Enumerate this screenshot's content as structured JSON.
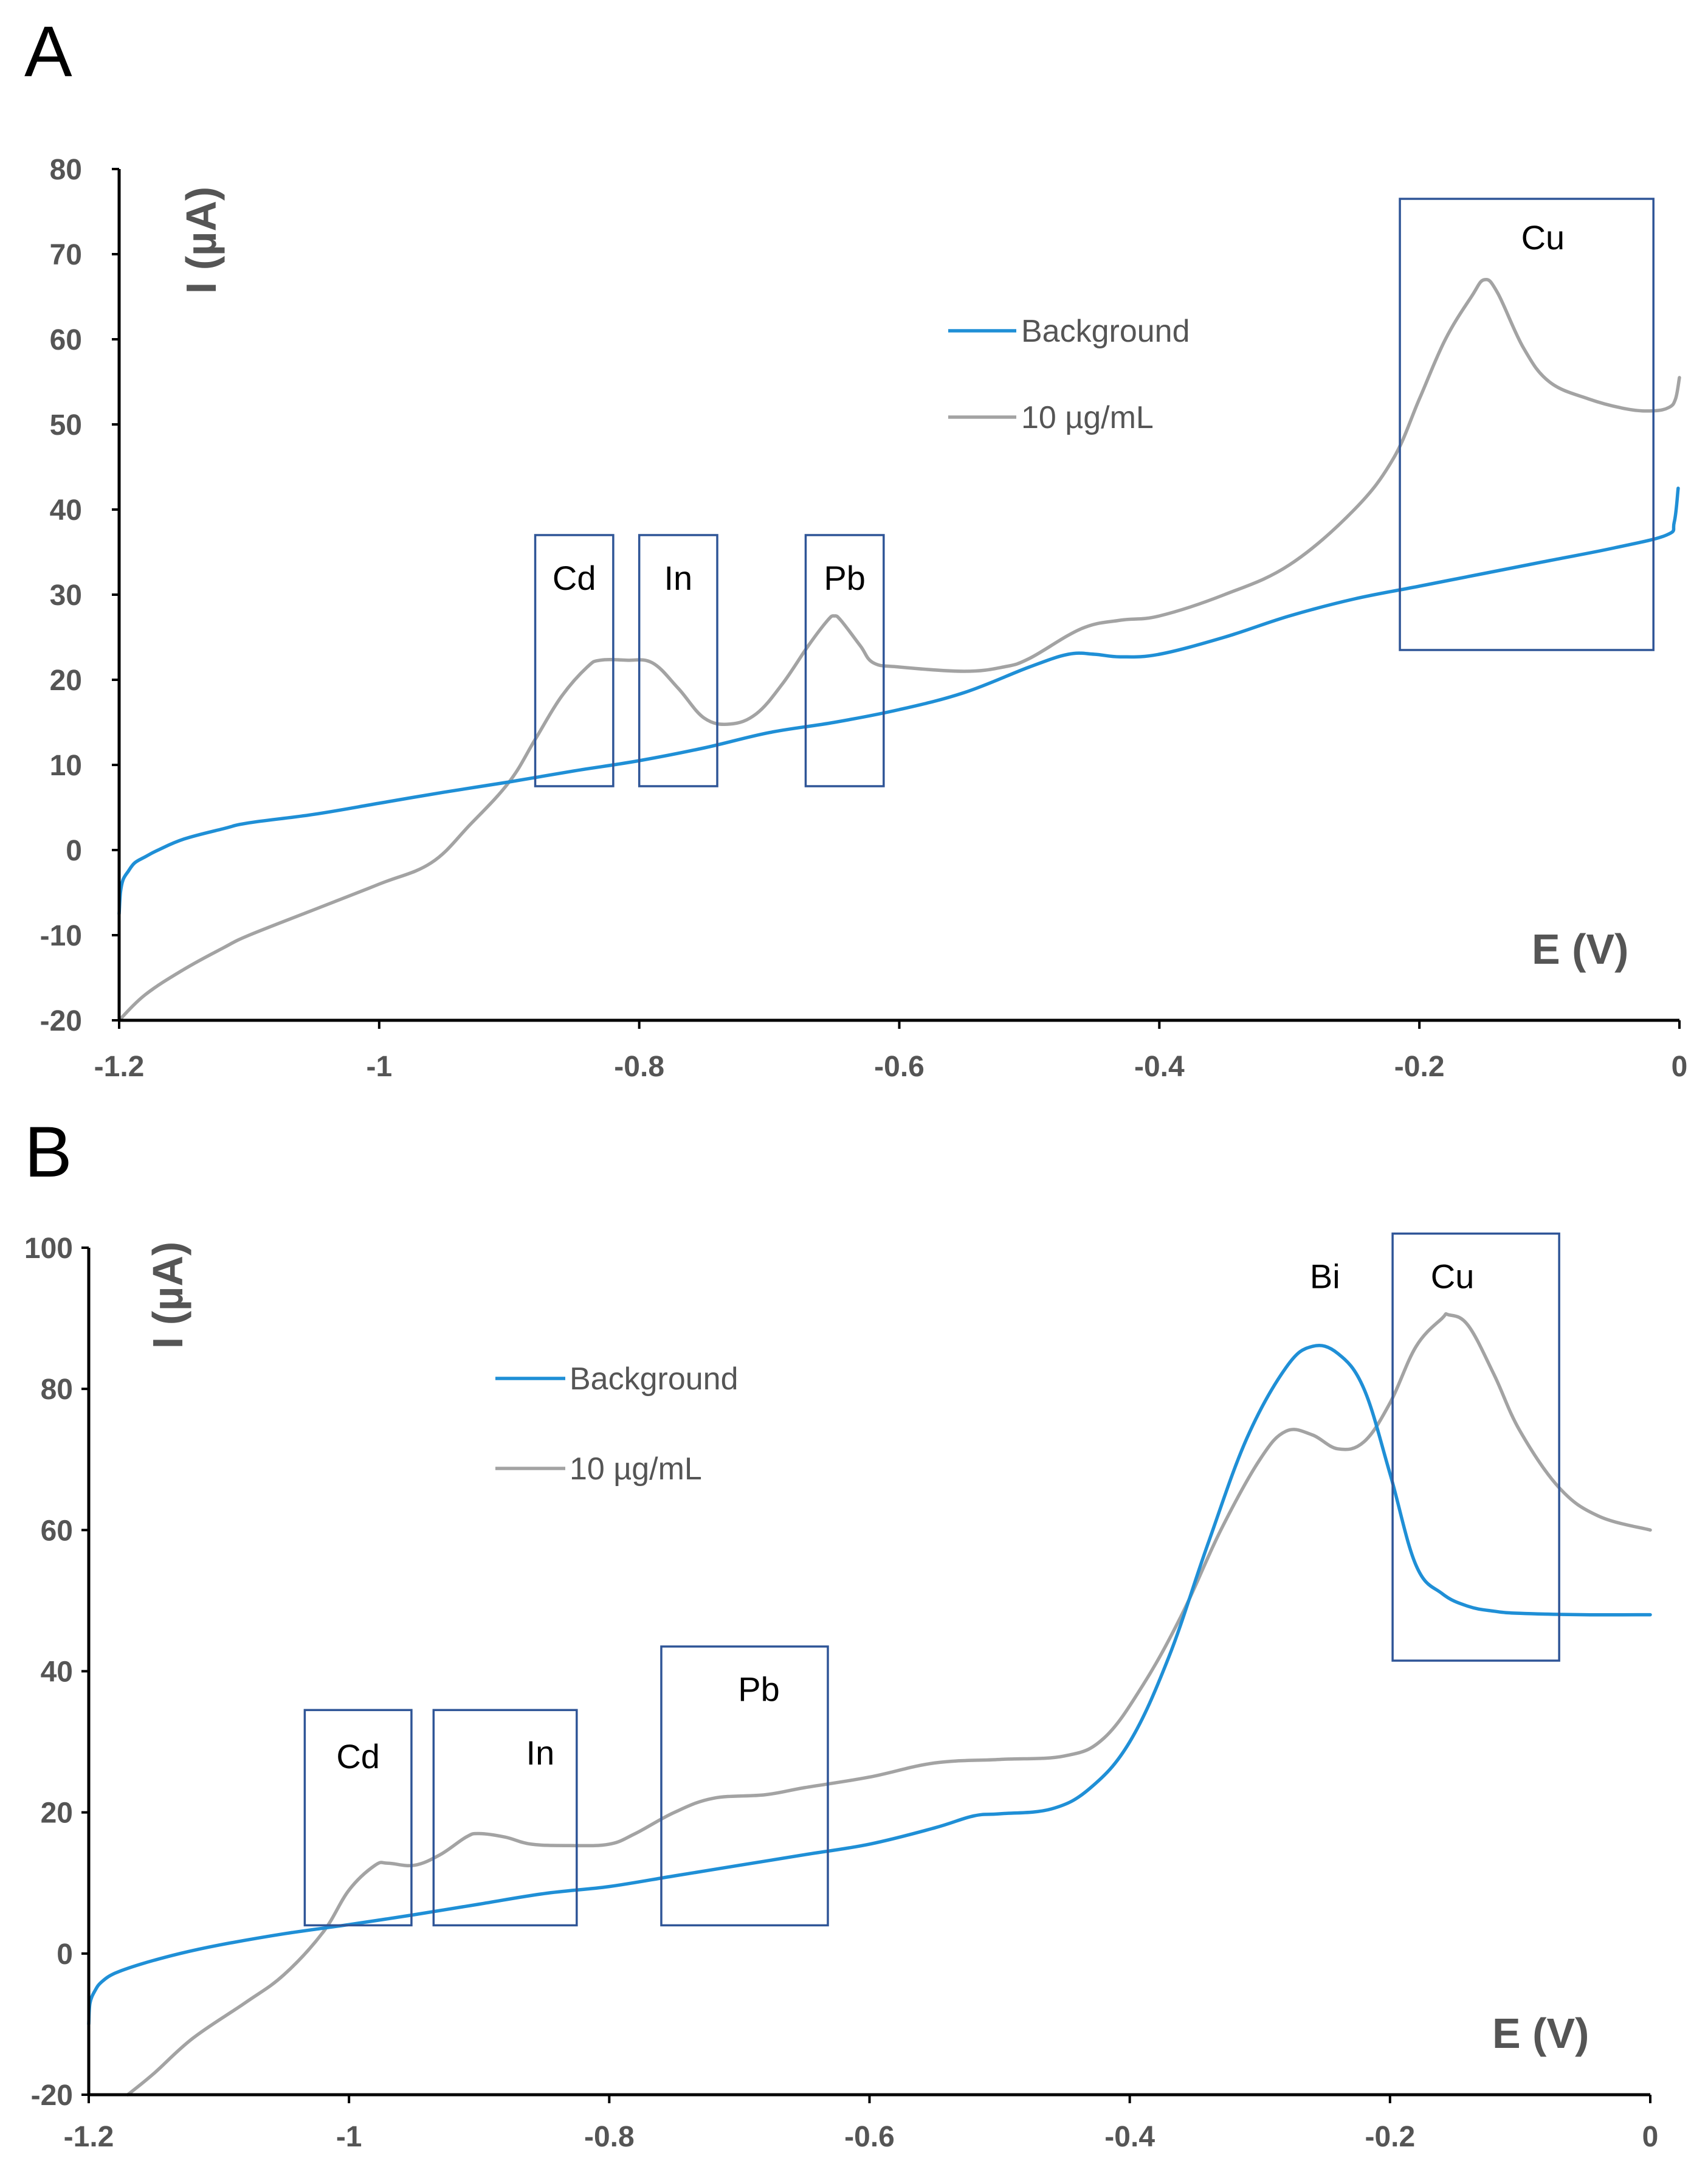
{
  "chart_data": [
    {
      "panel": "A",
      "type": "line",
      "xlabel": "E (V)",
      "ylabel": "I (µA)",
      "xlim": [
        -1.2,
        0
      ],
      "ylim": [
        -20,
        80
      ],
      "xticks": [
        -1.2,
        -1,
        -0.8,
        -0.6,
        -0.4,
        -0.2,
        0
      ],
      "xtick_labels": [
        "-1.2",
        "-1",
        "-0.8",
        "-0.6",
        "-0.4",
        "-0.2",
        "0"
      ],
      "yticks": [
        -20,
        -10,
        0,
        10,
        20,
        30,
        40,
        50,
        60,
        70,
        80
      ],
      "ytick_labels": [
        "-20",
        "-10",
        "0",
        "10",
        "20",
        "30",
        "40",
        "50",
        "60",
        "70",
        "80"
      ],
      "legend": [
        "Background",
        "10 µg/mL"
      ],
      "series": [
        {
          "name": "Background",
          "color": "#1f8fd6",
          "x": [
            -1.2,
            -1.199,
            -1.197,
            -1.193,
            -1.188,
            -1.18,
            -1.17,
            -1.15,
            -1.12,
            -1.1,
            -1.05,
            -1.0,
            -0.95,
            -0.9,
            -0.85,
            -0.8,
            -0.75,
            -0.7,
            -0.65,
            -0.6,
            -0.55,
            -0.5,
            -0.47,
            -0.45,
            -0.43,
            -0.4,
            -0.35,
            -0.3,
            -0.25,
            -0.2,
            -0.15,
            -0.1,
            -0.05,
            -0.01,
            -0.004,
            -0.001
          ],
          "y": [
            -7.5,
            -5,
            -3.5,
            -2.5,
            -1.5,
            -0.8,
            0,
            1.3,
            2.5,
            3.2,
            4.2,
            5.5,
            6.8,
            8,
            9.3,
            10.5,
            12,
            13.8,
            15,
            16.5,
            18.5,
            21.5,
            23,
            23,
            22.7,
            23,
            25,
            27.5,
            29.5,
            31,
            32.5,
            34,
            35.5,
            37,
            38.5,
            42.5
          ]
        },
        {
          "name": "10 µg/mL",
          "color": "#a3a3a3",
          "x": [
            -1.2,
            -1.18,
            -1.15,
            -1.12,
            -1.1,
            -1.05,
            -1.0,
            -0.96,
            -0.93,
            -0.9,
            -0.88,
            -0.86,
            -0.84,
            -0.83,
            -0.81,
            -0.79,
            -0.77,
            -0.75,
            -0.73,
            -0.71,
            -0.69,
            -0.67,
            -0.655,
            -0.65,
            -0.645,
            -0.63,
            -0.62,
            -0.6,
            -0.55,
            -0.52,
            -0.5,
            -0.46,
            -0.43,
            -0.4,
            -0.35,
            -0.3,
            -0.25,
            -0.22,
            -0.2,
            -0.18,
            -0.16,
            -0.15,
            -0.14,
            -0.12,
            -0.1,
            -0.07,
            -0.04,
            -0.02,
            -0.008,
            -0.003,
            0
          ],
          "y": [
            -20,
            -17,
            -14,
            -11.5,
            -10,
            -7,
            -4,
            -1.5,
            3,
            8,
            13,
            18,
            21.5,
            22.3,
            22.3,
            22,
            19,
            15.5,
            14.8,
            16,
            19.5,
            24,
            27,
            27.5,
            27,
            24,
            22,
            21.5,
            21,
            21.5,
            22.5,
            26,
            27,
            27.5,
            30,
            33.5,
            40,
            46,
            53,
            60,
            65,
            67,
            65.5,
            59,
            55,
            53,
            51.8,
            51.6,
            52,
            53,
            55.5
          ]
        }
      ],
      "annotations": [
        {
          "label": "Cd",
          "x_range": [
            -0.88,
            -0.82
          ],
          "y_range": [
            7.5,
            37
          ]
        },
        {
          "label": "In",
          "x_range": [
            -0.8,
            -0.74
          ],
          "y_range": [
            7.5,
            37
          ]
        },
        {
          "label": "Pb",
          "x_range": [
            -0.672,
            -0.612
          ],
          "y_range": [
            7.5,
            37
          ]
        },
        {
          "label": "Cu",
          "x_range": [
            -0.215,
            -0.02
          ],
          "y_range": [
            23.5,
            76.5
          ]
        }
      ]
    },
    {
      "panel": "B",
      "type": "line",
      "xlabel": "E (V)",
      "ylabel": "I (µA)",
      "xlim": [
        -1.2,
        0
      ],
      "ylim": [
        -20,
        100
      ],
      "xticks": [
        -1.2,
        -1,
        -0.8,
        -0.6,
        -0.4,
        -0.2,
        0
      ],
      "xtick_labels": [
        "-1.2",
        "-1",
        "-0.8",
        "-0.6",
        "-0.4",
        "-0.2",
        "0"
      ],
      "yticks": [
        -20,
        0,
        20,
        40,
        60,
        80,
        100
      ],
      "ytick_labels": [
        "-20",
        "0",
        "20",
        "40",
        "60",
        "80",
        "100"
      ],
      "legend": [
        "Background",
        "10 µg/mL"
      ],
      "series": [
        {
          "name": "Background",
          "color": "#1f8fd6",
          "x": [
            -1.2,
            -1.199,
            -1.195,
            -1.19,
            -1.18,
            -1.16,
            -1.13,
            -1.1,
            -1.05,
            -1.0,
            -0.95,
            -0.9,
            -0.85,
            -0.8,
            -0.75,
            -0.7,
            -0.65,
            -0.6,
            -0.55,
            -0.52,
            -0.5,
            -0.46,
            -0.43,
            -0.4,
            -0.37,
            -0.34,
            -0.31,
            -0.28,
            -0.26,
            -0.24,
            -0.22,
            -0.2,
            -0.18,
            -0.16,
            -0.14,
            -0.12,
            -0.1,
            -0.05,
            0
          ],
          "y": [
            -10,
            -7,
            -5.2,
            -4,
            -2.8,
            -1.5,
            0,
            1.2,
            2.8,
            4.1,
            5.5,
            7,
            8.5,
            9.5,
            11,
            12.5,
            14,
            15.5,
            17.8,
            19.5,
            19.8,
            20.5,
            23.5,
            30,
            42,
            58,
            73,
            83,
            86,
            85,
            80,
            68,
            55,
            51,
            49.2,
            48.5,
            48.2,
            48,
            48
          ]
        },
        {
          "name": "10 µg/mL",
          "color": "#a3a3a3",
          "x": [
            -1.17,
            -1.15,
            -1.12,
            -1.08,
            -1.05,
            -1.02,
            -1.0,
            -0.98,
            -0.97,
            -0.95,
            -0.93,
            -0.91,
            -0.9,
            -0.88,
            -0.86,
            -0.83,
            -0.8,
            -0.78,
            -0.75,
            -0.72,
            -0.68,
            -0.65,
            -0.6,
            -0.55,
            -0.5,
            -0.45,
            -0.42,
            -0.39,
            -0.36,
            -0.33,
            -0.3,
            -0.28,
            -0.26,
            -0.24,
            -0.22,
            -0.2,
            -0.18,
            -0.16,
            -0.155,
            -0.14,
            -0.12,
            -0.1,
            -0.07,
            -0.04,
            0
          ],
          "y": [
            -20,
            -17,
            -12,
            -7,
            -3,
            3,
            9,
            12.5,
            12.8,
            12.5,
            14,
            16.5,
            17,
            16.5,
            15.5,
            15.3,
            15.5,
            17,
            20,
            22,
            22.5,
            23.5,
            25,
            27,
            27.5,
            28,
            30.5,
            38,
            48,
            60,
            70,
            74,
            73.5,
            71.5,
            72.5,
            78,
            86,
            90,
            90.5,
            89,
            82,
            74,
            66,
            62,
            60
          ]
        }
      ],
      "annotations": [
        {
          "label": "Bi",
          "x": -0.25,
          "y": 96
        },
        {
          "label": "Cd",
          "x_range": [
            -1.034,
            -0.952
          ],
          "y_range": 4,
          "y_top": 34.5
        },
        {
          "label": "In",
          "x_range": [
            -0.935,
            -0.825
          ],
          "y_range": 4,
          "y_top": 34.5
        },
        {
          "label": "Pb",
          "x_range": [
            -0.76,
            -0.632
          ],
          "y_range": 4,
          "y_top": 43.5
        },
        {
          "label": "Cu",
          "x_range": [
            -0.198,
            -0.07
          ],
          "y_range": 41.5,
          "y_top": 102
        }
      ]
    }
  ]
}
